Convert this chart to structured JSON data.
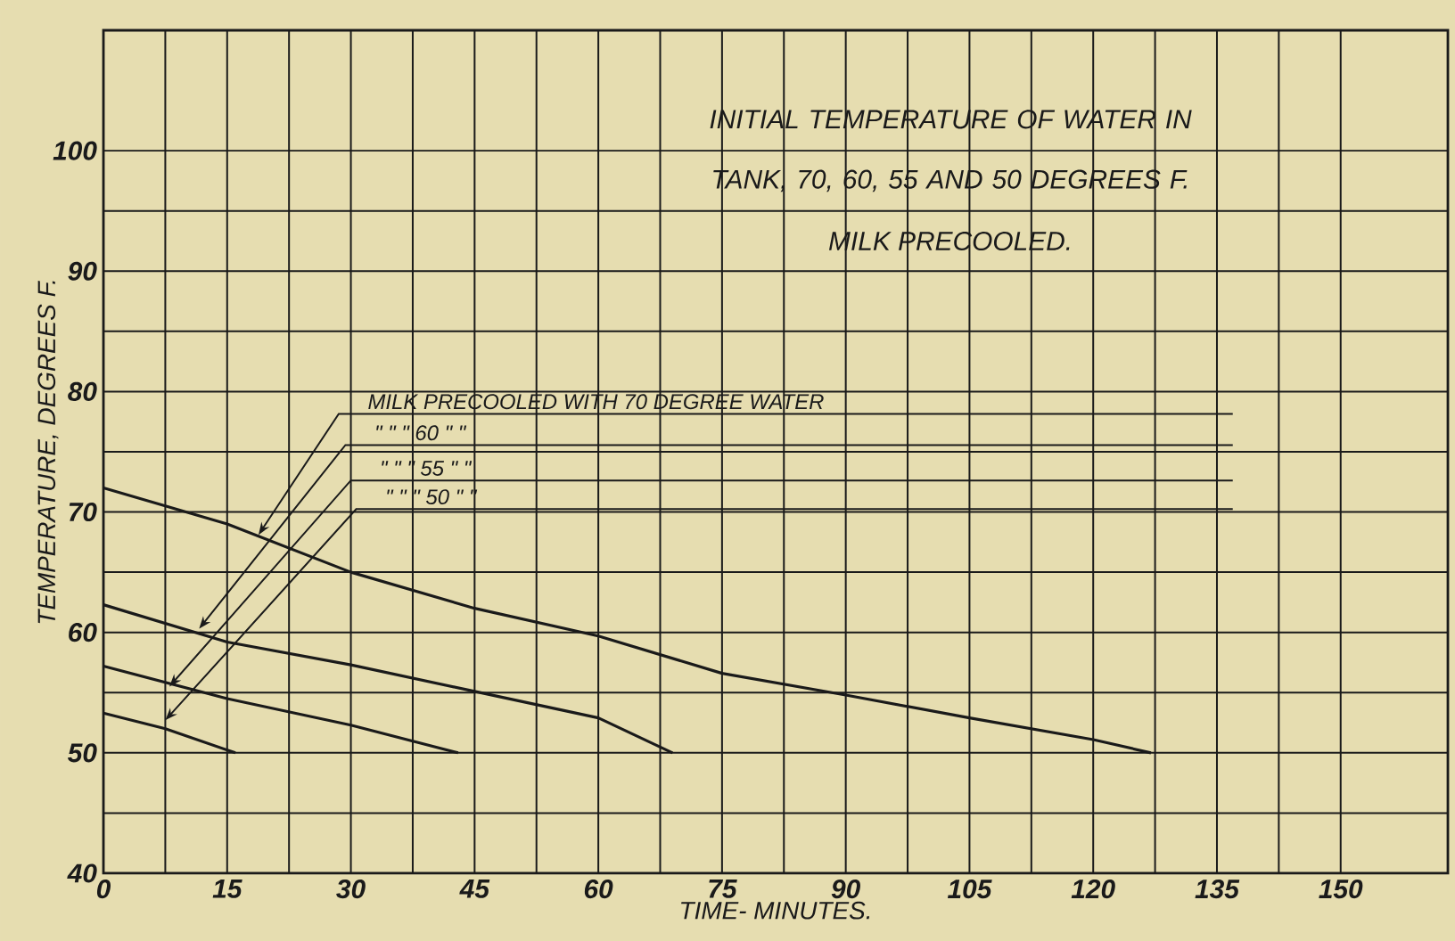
{
  "chart_data": {
    "type": "line",
    "title": "INITIAL TEMPERATURE OF WATER IN TANK, 70, 60, 55 AND 50 DEGREES F.",
    "subtitle": "MILK PRECOOLED.",
    "xlabel": "TIME- MINUTES.",
    "ylabel": "TEMPERATURE, DEGREES F.",
    "xlim": [
      0,
      163
    ],
    "ylim": [
      40,
      110
    ],
    "xticks": [
      0,
      15,
      30,
      45,
      60,
      75,
      90,
      105,
      120,
      135,
      150
    ],
    "yticks": [
      40,
      50,
      60,
      70,
      80,
      90,
      100
    ],
    "grid": true,
    "series": [
      {
        "color": "#1a1a1a",
        "x": [
          0,
          15,
          30,
          45,
          60,
          75,
          90,
          105,
          120,
          127
        ],
        "values": [
          72,
          69,
          65,
          62,
          59.7,
          56.6,
          54.8,
          52.9,
          51.1,
          50
        ]
      },
      {
        "color": "#1a1a1a",
        "x": [
          0,
          15,
          30,
          45,
          60,
          69
        ],
        "values": [
          62.3,
          59.2,
          57.3,
          55.1,
          52.9,
          50
        ]
      },
      {
        "color": "#1a1a1a",
        "x": [
          0,
          15,
          30,
          43
        ],
        "values": [
          57.2,
          54.5,
          52.3,
          50
        ]
      },
      {
        "color": "#1a1a1a",
        "x": [
          0,
          7.5,
          16
        ],
        "values": [
          53.3,
          52,
          50
        ]
      }
    ],
    "annotations": [
      {
        "text": "MILK PRECOOLED WITH 70 DEGREE WATER",
        "x": 18.8,
        "y": 68.1
      },
      {
        "text": "\"      \"      \"      60      \"      \"",
        "x": 11.6,
        "y": 60.3
      },
      {
        "text": "\"      \"      \"      55      \"      \"",
        "x": 8,
        "y": 55.5
      },
      {
        "text": "\"      \"      \"      50      \"      \"",
        "x": 7.5,
        "y": 52.7
      }
    ]
  }
}
